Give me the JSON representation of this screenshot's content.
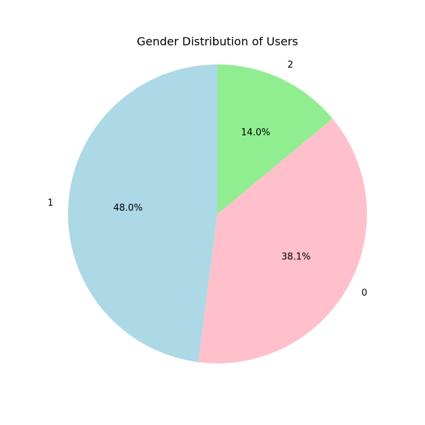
{
  "chart_data": {
    "type": "pie",
    "title": "Gender Distribution of Users",
    "categories": [
      "1",
      "0",
      "2"
    ],
    "values": [
      48.0,
      38.1,
      14.0
    ],
    "percent_labels": [
      "48.0%",
      "38.1%",
      "14.0%"
    ],
    "colors": [
      "#add8e6",
      "#ffc0cb",
      "#90ee90"
    ],
    "start_angle_deg": 90,
    "direction": "counterclockwise"
  }
}
